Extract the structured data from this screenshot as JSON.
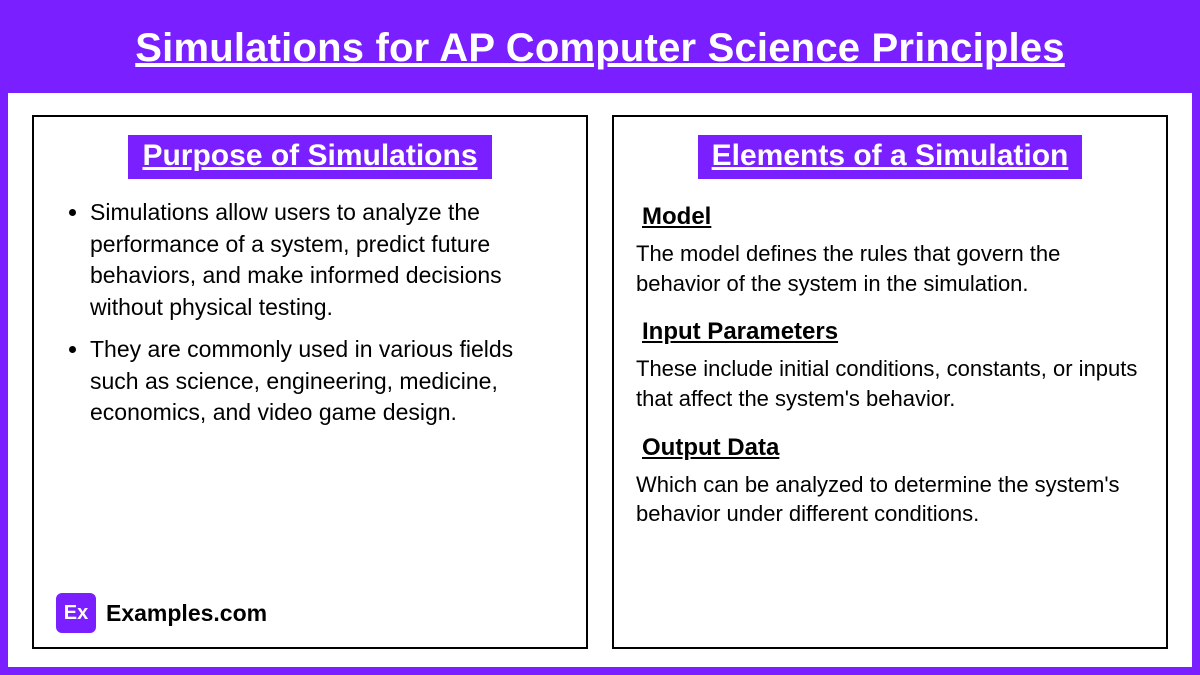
{
  "title": "Simulations for AP Computer Science Principles",
  "colors": {
    "accent": "#7a1fff",
    "border": "#000000",
    "background": "#ffffff",
    "text": "#000000",
    "title_text": "#ffffff"
  },
  "typography": {
    "title_fontsize": 40,
    "heading_fontsize": 30,
    "subheading_fontsize": 24,
    "body_fontsize": 23
  },
  "left": {
    "heading": "Purpose of Simulations",
    "bullets": [
      "Simulations allow users to analyze the performance of a system, predict future behaviors, and make informed decisions without physical testing.",
      "They are commonly used in various fields such as science, engineering, medicine, economics, and video game design."
    ]
  },
  "right": {
    "heading": "Elements of a Simulation",
    "sections": [
      {
        "title": "Model",
        "text": "The model defines the rules that govern the behavior of the system in the simulation."
      },
      {
        "title": "Input Parameters",
        "text": " These include initial conditions, constants, or inputs that affect the system's behavior."
      },
      {
        "title": "Output Data",
        "text": "Which can be analyzed to determine the system's behavior under different conditions."
      }
    ]
  },
  "footer": {
    "logo_label": "Ex",
    "brand": "Examples.com"
  }
}
